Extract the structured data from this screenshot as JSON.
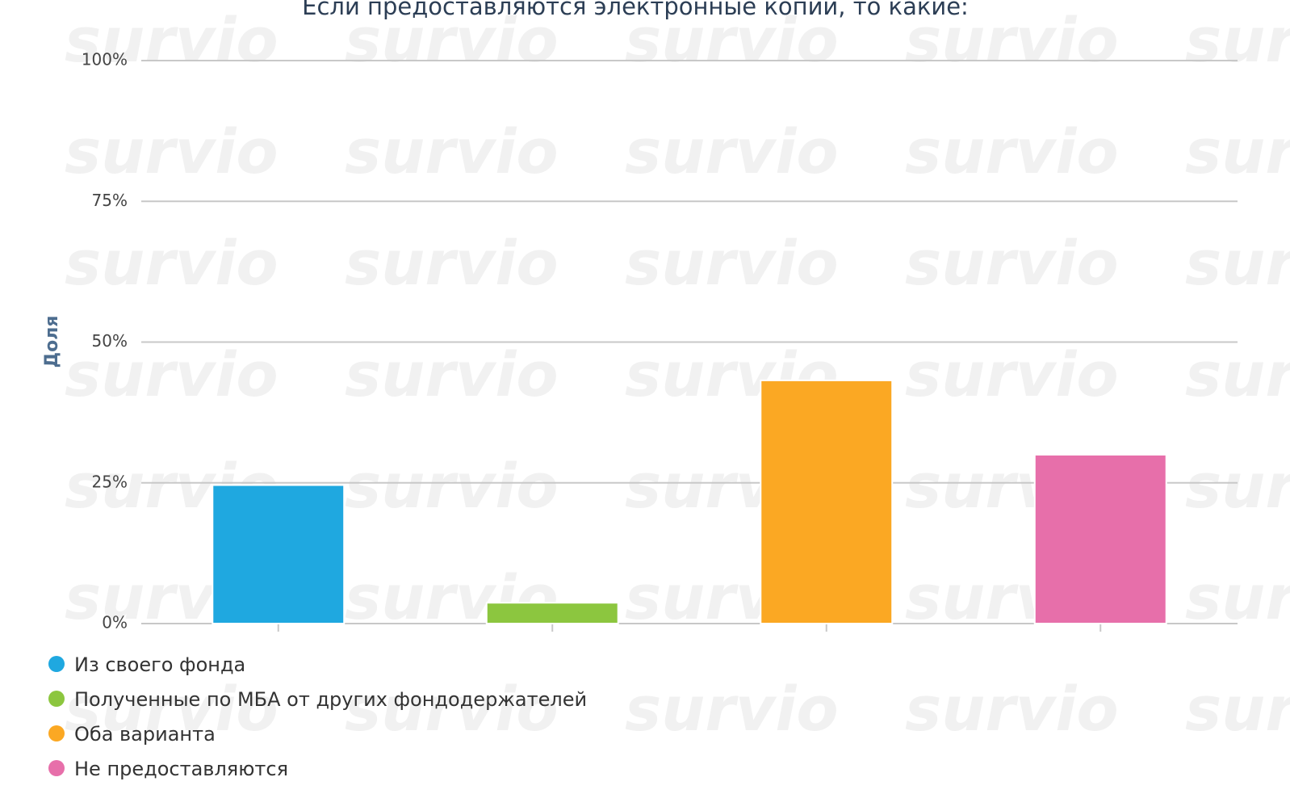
{
  "chart_data": {
    "type": "bar",
    "title": "Если предоставляются электронные копии, то какие:",
    "y_label": "Доля",
    "watermark": "survio",
    "categories": [
      "Из своего фонда",
      "Полученные по МБА от других фондодержателей",
      "Оба варианта",
      "Не предоставляются"
    ],
    "values": [
      24.6,
      3.7,
      43.2,
      30.0
    ],
    "colors": [
      "#1fa8e0",
      "#8cc63f",
      "#fba823",
      "#e76faa"
    ],
    "ylim": [
      0,
      100
    ],
    "yticks": [
      {
        "value": 0,
        "label": "0%"
      },
      {
        "value": 25,
        "label": "25%"
      },
      {
        "value": 50,
        "label": "50%"
      },
      {
        "value": 75,
        "label": "75%"
      },
      {
        "value": 100,
        "label": "100%"
      }
    ],
    "grid": true
  }
}
